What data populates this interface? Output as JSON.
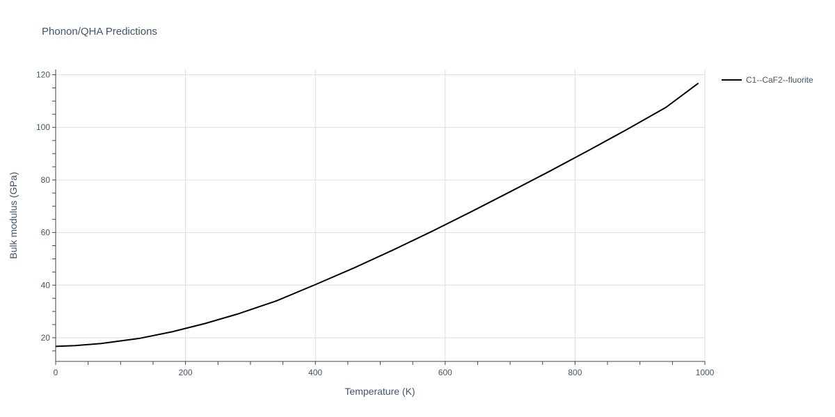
{
  "chart_data": {
    "type": "line",
    "title": "Phonon/QHA Predictions",
    "xlabel": "Temperature (K)",
    "ylabel": "Bulk modulus (GPa)",
    "xlim": [
      0,
      1000
    ],
    "ylim": [
      11,
      122
    ],
    "x_ticks": [
      0,
      200,
      400,
      600,
      800,
      1000
    ],
    "y_ticks": [
      20,
      40,
      60,
      80,
      100,
      120
    ],
    "grid": true,
    "legend_position": "top-right outside",
    "series": [
      {
        "name": "C1--CaF2--fluorite",
        "color": "#000000",
        "x": [
          0,
          30,
          70,
          130,
          180,
          230,
          280,
          340,
          400,
          460,
          520,
          580,
          640,
          700,
          760,
          820,
          880,
          940,
          990
        ],
        "y": [
          16.7,
          17.0,
          17.8,
          19.8,
          22.3,
          25.4,
          29.0,
          34.0,
          40.2,
          46.6,
          53.4,
          60.5,
          67.9,
          75.5,
          83.2,
          91.1,
          99.2,
          107.6,
          116.8
        ]
      }
    ]
  }
}
